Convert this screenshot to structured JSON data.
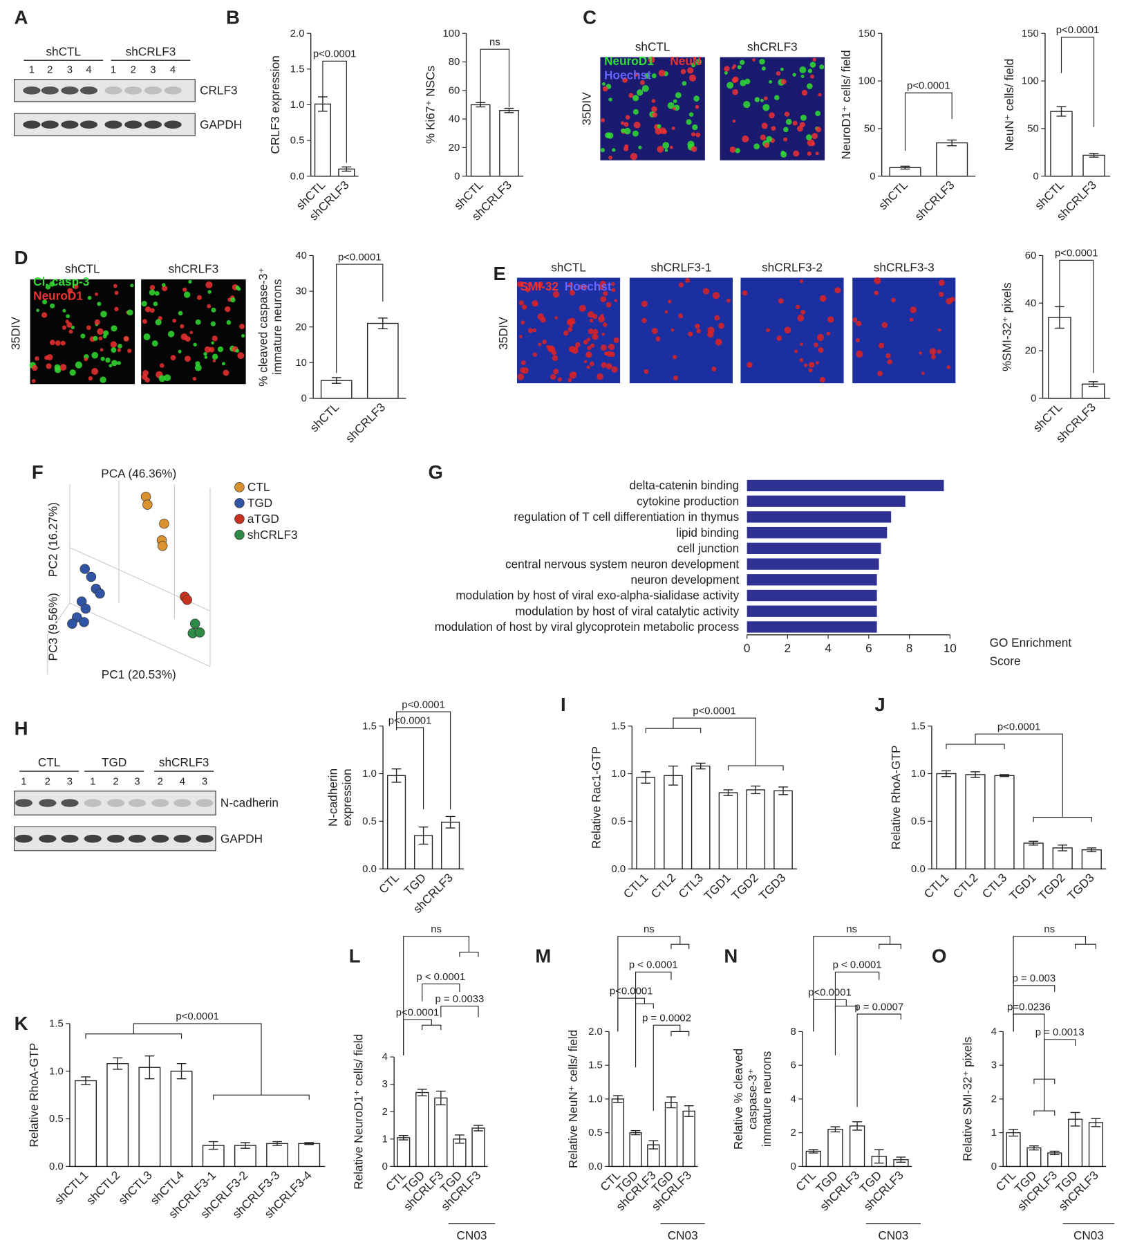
{
  "panel_labels": [
    "A",
    "B",
    "C",
    "D",
    "E",
    "F",
    "G",
    "H",
    "I",
    "J",
    "K",
    "L",
    "M",
    "N",
    "O"
  ],
  "blots": [
    {
      "groups": [
        "shCTL",
        "shCRLF3"
      ],
      "lanes": [
        "1",
        "2",
        "3",
        "4",
        "1",
        "2",
        "3",
        "4"
      ],
      "bands": [
        "CRLF3",
        "GAPDH"
      ]
    },
    {
      "groups": [
        "CTL",
        "TGD",
        "shCRLF3"
      ],
      "lanes": [
        "1",
        "2",
        "3",
        "1",
        "2",
        "3",
        "2",
        "4",
        "3"
      ],
      "bands": [
        "N-cadherin",
        "GAPDH"
      ]
    }
  ],
  "micrographs": [
    {
      "side": "35DIV",
      "titles": [
        "shCTL",
        "shCRLF3"
      ],
      "stains": [
        "NeuroD1",
        "NeuN",
        "Hoechst"
      ]
    },
    {
      "side": "35DIV",
      "titles": [
        "shCTL",
        "shCRLF3"
      ],
      "stains": [
        "Cl. casp-3",
        "NeuroD1"
      ]
    },
    {
      "side": "35DIV",
      "titles": [
        "shCTL",
        "shCRLF3-1",
        "shCRLF3-2",
        "shCRLF3-3"
      ],
      "stains": [
        "SMI-32",
        "Hoechst"
      ]
    }
  ],
  "pca": {
    "title": "PCA (46.36%)",
    "axes": [
      "PC2 (16.27%)",
      "PC3 (9.56%)",
      "PC1 (20.53%)"
    ],
    "legend": [
      {
        "name": "CTL",
        "color": "#d9922e"
      },
      {
        "name": "TGD",
        "color": "#2f55a4"
      },
      {
        "name": "aTGD",
        "color": "#c8321f"
      },
      {
        "name": "shCRLF3",
        "color": "#2e8b45"
      }
    ]
  },
  "chart_data": [
    {
      "type": "bar",
      "ylabel": [
        "CRLF3 expression"
      ],
      "categories": [
        "shCTL",
        "shCRLF3"
      ],
      "values": [
        1.01,
        0.1
      ],
      "errors": [
        0.1,
        0.03
      ],
      "ylim": [
        0,
        2
      ],
      "yticks": [
        {
          "value": 0,
          "label": "0.0"
        },
        {
          "value": 0.5,
          "label": "0.5"
        },
        {
          "value": 1,
          "label": "1.0"
        },
        {
          "value": 1.5,
          "label": "1.5"
        },
        {
          "value": 2,
          "label": "2.0"
        }
      ],
      "annotations": [
        "p<0.0001"
      ]
    },
    {
      "type": "bar",
      "ylabel": [
        "% Ki67⁺ NSCs"
      ],
      "categories": [
        "shCTL",
        "shCRLF3"
      ],
      "values": [
        50,
        46
      ],
      "errors": [
        1.5,
        1.5
      ],
      "ylim": [
        0,
        100
      ],
      "yticks": [
        0,
        20,
        40,
        60,
        80,
        100
      ],
      "annotations": [
        "ns"
      ]
    },
    {
      "type": "bar",
      "ylabel": [
        "NeuroD1⁺ cells/ field"
      ],
      "categories": [
        "shCTL",
        "shCRLF3"
      ],
      "values": [
        9,
        35
      ],
      "errors": [
        1.5,
        3
      ],
      "ylim": [
        0,
        150
      ],
      "yticks": [
        0,
        50,
        100,
        150
      ],
      "annotations": [
        "p<0.0001"
      ]
    },
    {
      "type": "bar",
      "ylabel": [
        "NeuN⁺ cells/ field"
      ],
      "categories": [
        "shCTL",
        "shCRLF3"
      ],
      "values": [
        68,
        22
      ],
      "errors": [
        5,
        2
      ],
      "ylim": [
        0,
        150
      ],
      "yticks": [
        0,
        50,
        100,
        150
      ],
      "annotations": [
        "p<0.0001"
      ]
    },
    {
      "type": "bar",
      "ylabel": [
        "% cleaved caspase-3⁺",
        "immature neurons"
      ],
      "categories": [
        "shCTL",
        "shCRLF3"
      ],
      "values": [
        5,
        21
      ],
      "errors": [
        0.8,
        1.5
      ],
      "ylim": [
        0,
        40
      ],
      "yticks": [
        0,
        10,
        20,
        30,
        40
      ],
      "annotations": [
        "p<0.0001"
      ]
    },
    {
      "type": "bar",
      "ylabel": [
        "%SMI-32⁺ pixels"
      ],
      "categories": [
        "shCTL",
        "shCRLF3"
      ],
      "values": [
        34,
        6
      ],
      "errors": [
        4.5,
        1
      ],
      "ylim": [
        0,
        60
      ],
      "yticks": [
        0,
        20,
        40,
        60
      ],
      "annotations": [
        "p<0.0001"
      ]
    },
    {
      "type": "barh",
      "xlabel": [
        "GO Enrichment",
        "Score"
      ],
      "color": "#2e3192",
      "categories": [
        "delta-catenin binding",
        "cytokine production",
        "regulation of T cell differentiation in thymus",
        "lipid binding",
        "cell junction",
        "central nervous system neuron development",
        "neuron development",
        "modulation by host of viral exo-alpha-sialidase activity",
        "modulation by host of viral catalytic activity",
        "modulation of host by viral glycoprotein metabolic process"
      ],
      "values": [
        9.7,
        7.8,
        7.1,
        6.9,
        6.6,
        6.5,
        6.4,
        6.4,
        6.4,
        6.4
      ],
      "xlim": [
        0,
        10
      ],
      "xticks": [
        0,
        2,
        4,
        6,
        8,
        10
      ]
    },
    {
      "type": "bar",
      "ylabel": [
        "N-cadherin",
        "expression"
      ],
      "categories": [
        "CTL",
        "TGD",
        "shCRLF3"
      ],
      "values": [
        0.98,
        0.35,
        0.49
      ],
      "errors": [
        0.07,
        0.09,
        0.06
      ],
      "ylim": [
        0,
        1.5
      ],
      "yticks": [
        {
          "value": 0,
          "label": "0.0"
        },
        {
          "value": 0.5,
          "label": "0.5"
        },
        {
          "value": 1,
          "label": "1.0"
        },
        {
          "value": 1.5,
          "label": "1.5"
        }
      ],
      "annotations": [
        "p<0.0001",
        "p<0.0001"
      ]
    },
    {
      "type": "bar",
      "ylabel": [
        "Relative Rac1-GTP"
      ],
      "categories": [
        "CTL1",
        "CTL2",
        "CTL3",
        "TGD1",
        "TGD2",
        "TGD3"
      ],
      "values": [
        0.96,
        0.98,
        1.08,
        0.8,
        0.83,
        0.82
      ],
      "errors": [
        0.06,
        0.1,
        0.03,
        0.03,
        0.04,
        0.04
      ],
      "ylim": [
        0,
        1.5
      ],
      "yticks": [
        {
          "value": 0,
          "label": "0.0"
        },
        {
          "value": 0.5,
          "label": "0.5"
        },
        {
          "value": 1,
          "label": "1.0"
        },
        {
          "value": 1.5,
          "label": "1.5"
        }
      ],
      "annotations": [
        "p<0.0001"
      ]
    },
    {
      "type": "bar",
      "ylabel": [
        "Relative RhoA-GTP"
      ],
      "categories": [
        "CTL1",
        "CTL2",
        "CTL3",
        "TGD1",
        "TGD2",
        "TGD3"
      ],
      "values": [
        1.0,
        0.99,
        0.98,
        0.27,
        0.22,
        0.2
      ],
      "errors": [
        0.03,
        0.03,
        0.01,
        0.02,
        0.03,
        0.02
      ],
      "ylim": [
        0,
        1.5
      ],
      "yticks": [
        {
          "value": 0,
          "label": "0.0"
        },
        {
          "value": 0.5,
          "label": "0.5"
        },
        {
          "value": 1,
          "label": "1.0"
        },
        {
          "value": 1.5,
          "label": "1.5"
        }
      ],
      "annotations": [
        "p<0.0001"
      ]
    },
    {
      "type": "bar",
      "ylabel": [
        "Relative RhoA-GTP"
      ],
      "categories": [
        "shCTL1",
        "shCTL2",
        "shCTL3",
        "shCTL4",
        "shCRLF3-1",
        "shCRLF3-2",
        "shCRLF3-3",
        "shCRLF3-4"
      ],
      "values": [
        0.9,
        1.08,
        1.04,
        1.0,
        0.22,
        0.22,
        0.24,
        0.24
      ],
      "errors": [
        0.04,
        0.06,
        0.12,
        0.08,
        0.04,
        0.03,
        0.02,
        0.01
      ],
      "ylim": [
        0,
        1.5
      ],
      "yticks": [
        {
          "value": 0,
          "label": "0.0"
        },
        {
          "value": 0.5,
          "label": "0.5"
        },
        {
          "value": 1,
          "label": "1.0"
        },
        {
          "value": 1.5,
          "label": "1.5"
        }
      ],
      "annotations": [
        "p<0.0001"
      ]
    },
    {
      "type": "bar",
      "ylabel": [
        "Relative NeuroD1⁺ cells/ field"
      ],
      "categories": [
        "CTL",
        "TGD",
        "shCRLF3",
        "TGD",
        "shCRLF3"
      ],
      "values": [
        1.05,
        2.7,
        2.5,
        1.0,
        1.4
      ],
      "errors": [
        0.08,
        0.12,
        0.25,
        0.15,
        0.1
      ],
      "ylim": [
        0,
        4
      ],
      "yticks": [
        0,
        1,
        2,
        3,
        4
      ],
      "annotations": [
        "ns",
        "p < 0.0001",
        "p = 0.0033",
        "p<0.0001"
      ],
      "group_label": "CN03"
    },
    {
      "type": "bar",
      "ylabel": [
        "Relative NeuN⁺ cells/ field"
      ],
      "categories": [
        "CTL",
        "TGD",
        "shCRLF3",
        "TGD",
        "shCRLF3"
      ],
      "values": [
        1.0,
        0.5,
        0.32,
        0.95,
        0.82
      ],
      "errors": [
        0.05,
        0.03,
        0.06,
        0.08,
        0.08
      ],
      "ylim": [
        0,
        2
      ],
      "yticks": [
        {
          "value": 0,
          "label": "0.0"
        },
        {
          "value": 0.5,
          "label": "0.5"
        },
        {
          "value": 1,
          "label": "1.0"
        },
        {
          "value": 1.5,
          "label": "1.5"
        },
        {
          "value": 2,
          "label": "2.0"
        }
      ],
      "annotations": [
        "ns",
        "p < 0.0001",
        "p<0.0001",
        "p = 0.0002"
      ],
      "group_label": "CN03"
    },
    {
      "type": "bar",
      "ylabel": [
        "Relative % cleaved",
        "caspase-3⁺",
        "immature neurons"
      ],
      "categories": [
        "CTL",
        "TGD",
        "shCRLF3",
        "TGD",
        "shCRLF3"
      ],
      "values": [
        0.9,
        2.2,
        2.4,
        0.6,
        0.4
      ],
      "errors": [
        0.1,
        0.15,
        0.25,
        0.4,
        0.15
      ],
      "ylim": [
        0,
        8
      ],
      "yticks": [
        0,
        2,
        4,
        6,
        8
      ],
      "annotations": [
        "ns",
        "p < 0.0001",
        "p<0.0001",
        "p = 0.0007"
      ],
      "group_label": "CN03"
    },
    {
      "type": "bar",
      "ylabel": [
        "Relative SMI-32⁺ pixels"
      ],
      "categories": [
        "CTL",
        "TGD",
        "shCRLF3",
        "TGD",
        "shCRLF3"
      ],
      "values": [
        1.0,
        0.55,
        0.4,
        1.4,
        1.3
      ],
      "errors": [
        0.1,
        0.06,
        0.05,
        0.2,
        0.12
      ],
      "ylim": [
        0,
        4
      ],
      "yticks": [
        0,
        1,
        2,
        3,
        4
      ],
      "annotations": [
        "ns",
        "p = 0.003",
        "p = 0.0013",
        "p=0.0236"
      ],
      "group_label": "CN03"
    }
  ]
}
